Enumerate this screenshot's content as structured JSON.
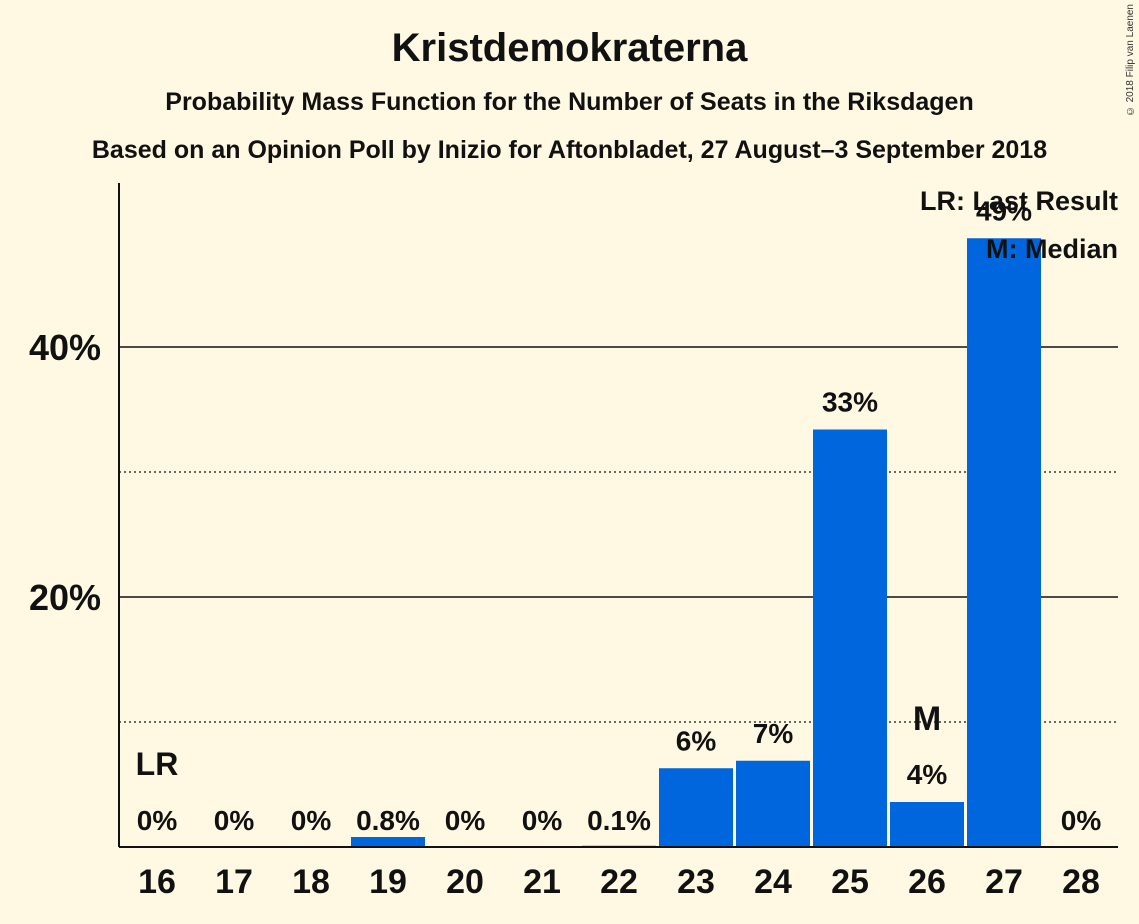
{
  "header": {
    "title": "Kristdemokraterna",
    "subtitle": "Probability Mass Function for the Number of Seats in the Riksdagen",
    "subtitle2": "Based on an Opinion Poll by Inizio for Aftonbladet, 27 August–3 September 2018",
    "copyright": "© 2018 Filip van Laenen"
  },
  "legend": {
    "last_result": "LR: Last Result",
    "median": "M: Median"
  },
  "colors": {
    "bar": "#0066dd",
    "background": "#fff9e3",
    "text": "#111111"
  },
  "chart_data": {
    "type": "bar",
    "categories": [
      "16",
      "17",
      "18",
      "19",
      "20",
      "21",
      "22",
      "23",
      "24",
      "25",
      "26",
      "27",
      "28"
    ],
    "values": [
      0,
      0,
      0,
      0.8,
      0,
      0,
      0.1,
      6.3,
      6.9,
      33.4,
      3.6,
      48.7,
      0
    ],
    "labels": [
      "0%",
      "0%",
      "0%",
      "0.8%",
      "0%",
      "0%",
      "0.1%",
      "6%",
      "7%",
      "33%",
      "4%",
      "49%",
      "0%"
    ],
    "ylim": [
      0,
      53
    ],
    "yticks": [
      20,
      40
    ],
    "ytick_labels": [
      "20%",
      "40%"
    ],
    "minor_yticks": [
      10,
      30
    ],
    "last_result_category": "16",
    "last_result_marker": "LR",
    "median_category": "26",
    "median_marker": "M",
    "legend_position": "top-right"
  }
}
